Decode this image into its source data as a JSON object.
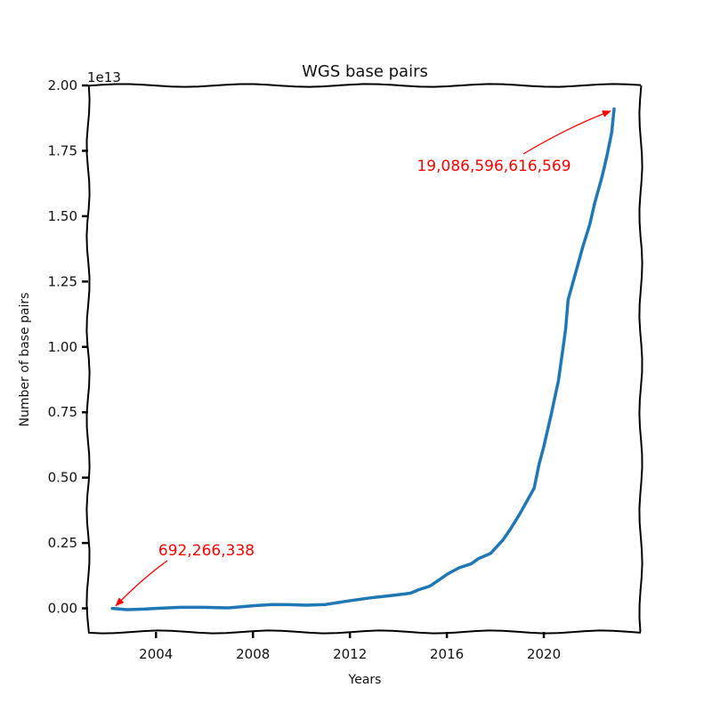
{
  "chart_data": {
    "type": "line",
    "title": "WGS base pairs",
    "xlabel": "Years",
    "ylabel": "Number of base pairs",
    "y_offset_label": "1e13",
    "y_multiplier": 10000000000000.0,
    "xlim": [
      2001.2,
      2024.0
    ],
    "ylim": [
      -0.09,
      2.0
    ],
    "x_ticks": [
      2004,
      2008,
      2012,
      2016,
      2020
    ],
    "y_ticks": [
      0.0,
      0.25,
      0.5,
      0.75,
      1.0,
      1.25,
      1.5,
      1.75,
      2.0
    ],
    "y_tick_labels": [
      "0.00",
      "0.25",
      "0.50",
      "0.75",
      "1.00",
      "1.25",
      "1.50",
      "1.75",
      "2.00"
    ],
    "grid": false,
    "series": [
      {
        "color": "#1f77b4",
        "x": [
          2002.2,
          2002.8,
          2003.5,
          2004.0,
          2005.0,
          2006.0,
          2007.0,
          2008.0,
          2008.8,
          2009.5,
          2010.2,
          2011.0,
          2011.7,
          2012.2,
          2013.0,
          2013.8,
          2014.5,
          2014.8,
          2015.3,
          2015.7,
          2016.0,
          2016.5,
          2017.0,
          2017.3,
          2017.8,
          2018.3,
          2018.6,
          2019.0,
          2019.3,
          2019.6,
          2019.8,
          2020.0,
          2020.3,
          2020.6,
          2020.8,
          2020.9,
          2021.0,
          2021.3,
          2021.6,
          2021.9,
          2022.1,
          2022.4,
          2022.6,
          2022.8,
          2022.9
        ],
        "values": [
          0.0,
          -0.005,
          -0.003,
          0.0,
          0.004,
          0.004,
          0.002,
          0.01,
          0.015,
          0.014,
          0.012,
          0.015,
          0.025,
          0.032,
          0.042,
          0.05,
          0.058,
          0.07,
          0.085,
          0.11,
          0.13,
          0.155,
          0.17,
          0.19,
          0.21,
          0.26,
          0.3,
          0.36,
          0.41,
          0.46,
          0.55,
          0.62,
          0.74,
          0.87,
          1.0,
          1.07,
          1.18,
          1.28,
          1.38,
          1.47,
          1.55,
          1.65,
          1.73,
          1.82,
          1.91
        ]
      }
    ],
    "annotations": [
      {
        "text": "692,266,338",
        "x": 2002.2,
        "y": 0.0,
        "color": "#ff0000"
      },
      {
        "text": "19,086,596,616,569",
        "x": 2022.9,
        "y": 1.9087,
        "color": "#ff0000"
      }
    ]
  }
}
